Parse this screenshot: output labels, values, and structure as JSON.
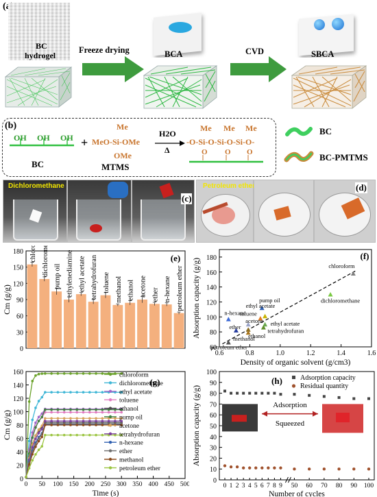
{
  "panel_a": {
    "label": "(a)",
    "bc_hydrogel": [
      "BC",
      "hydrogel"
    ],
    "step1": "Freeze drying",
    "bca": "BCA",
    "step2": "CVD",
    "sbca": "SBCA",
    "colors": {
      "bc_green": "#2fbf3f",
      "sbca_brown": "#c98a3a",
      "arrow": "#3e9b3e"
    }
  },
  "panel_b": {
    "label": "(b)",
    "bc_chain_oh": [
      "OH",
      "OH",
      "OH"
    ],
    "bc_name": "BC",
    "plus": "+",
    "mtms": {
      "top": "Me",
      "mid": "MeO-Si-OMe",
      "bottom": "OMe",
      "name": "MTMS"
    },
    "reaction": {
      "above": "H2O",
      "below": "Δ"
    },
    "product": {
      "me": [
        "Me",
        "Me",
        "Me"
      ],
      "chain": "-O-Si-O-Si-O-Si-O-",
      "o": [
        "O",
        "O",
        "O"
      ]
    },
    "legend": [
      {
        "label": "BC"
      },
      {
        "label": "BC-PMTMS"
      }
    ]
  },
  "panel_c": {
    "label": "(c)",
    "solvent": "Dichloromethane"
  },
  "panel_d": {
    "label": "(d)",
    "solvent": "Petroleum ether"
  },
  "chart_data": [
    {
      "panel": "(e)",
      "type": "bar",
      "ylabel": "Cm (g/g)",
      "ylim": [
        0,
        180
      ],
      "yticks": [
        0,
        30,
        60,
        90,
        120,
        150,
        180
      ],
      "categories": [
        "chloroform",
        "dichloromethane",
        "pump oil",
        "ethylenediamine",
        "ethyl acetate",
        "tetrahydrofuran",
        "toluene",
        "methanol",
        "ethanol",
        "acetone",
        "ether",
        "n-hexane",
        "petroleum ether"
      ],
      "values": [
        155,
        128,
        105,
        90,
        100,
        86,
        98,
        80,
        84,
        90,
        82,
        81,
        65
      ],
      "errors": [
        4,
        4,
        6,
        5,
        3,
        4,
        5,
        2,
        4,
        6,
        3,
        3,
        2
      ],
      "bar_color": "#f4b07e"
    },
    {
      "panel": "(f)",
      "type": "scatter",
      "xlabel": "Density of organic solvent (g/cm3)",
      "ylabel": "Absorption capacity (g/g)",
      "xlim": [
        0.6,
        1.6
      ],
      "ylim": [
        60,
        190
      ],
      "xticks": [
        0.6,
        0.8,
        1.0,
        1.2,
        1.4,
        1.6
      ],
      "yticks": [
        60,
        80,
        100,
        120,
        140,
        160,
        180
      ],
      "points": [
        {
          "name": "chloroform",
          "x": 1.48,
          "y": 158,
          "color": "#808080"
        },
        {
          "name": "dichloromethane",
          "x": 1.33,
          "y": 130,
          "color": "#7ac943"
        },
        {
          "name": "pump oil",
          "x": 0.88,
          "y": 112,
          "color": "#2f5fb0"
        },
        {
          "name": "ethyl acetate",
          "x": 0.9,
          "y": 101,
          "color": "#c8b400"
        },
        {
          "name": "toluene",
          "x": 0.87,
          "y": 98,
          "color": "#e07a1f"
        },
        {
          "name": "n-hexane",
          "x": 0.66,
          "y": 97,
          "color": "#3d6ad6"
        },
        {
          "name": "acetone",
          "x": 0.79,
          "y": 90,
          "color": "#9aa4c8"
        },
        {
          "name": "ether",
          "x": 0.71,
          "y": 82,
          "color": "#2a3fa0"
        },
        {
          "name": "ethyl acetate",
          "x": 0.9,
          "y": 90,
          "color": "#6aa84f"
        },
        {
          "name": "tetrahydrofuran",
          "x": 0.89,
          "y": 86,
          "color": "#5f8f2a"
        },
        {
          "name": "ethanol",
          "x": 0.79,
          "y": 83,
          "color": "#8c6d1f"
        },
        {
          "name": "methanol",
          "x": 0.79,
          "y": 79,
          "color": "#a8751d"
        },
        {
          "name": "petroleum ether",
          "x": 0.66,
          "y": 66,
          "color": "#555555"
        }
      ]
    },
    {
      "panel": "(g)",
      "type": "line",
      "xlabel": "Time (s)",
      "ylabel": "Cm (g/g)",
      "xlim": [
        0,
        500
      ],
      "ylim": [
        0,
        160
      ],
      "xticks": [
        0,
        50,
        100,
        150,
        200,
        250,
        300,
        350,
        400,
        450,
        500
      ],
      "yticks": [
        0,
        20,
        40,
        60,
        80,
        100,
        120,
        140,
        160
      ],
      "series": [
        {
          "name": "chloroform",
          "final": 157,
          "color": "#6aa12a"
        },
        {
          "name": "dichloromethane",
          "final": 129,
          "color": "#3fb6d6"
        },
        {
          "name": "ethyl acetate",
          "final": 104,
          "color": "#a066c8"
        },
        {
          "name": "toluene",
          "final": 99,
          "color": "#e07ac0"
        },
        {
          "name": "ethanol",
          "final": 84,
          "color": "#4c4c4c"
        },
        {
          "name": "pump oil",
          "final": 103,
          "color": "#3f7f3f"
        },
        {
          "name": "acetone",
          "final": 90,
          "color": "#d9a35a"
        },
        {
          "name": "tetrahydrofuran",
          "final": 86,
          "color": "#7b3f9e"
        },
        {
          "name": "n-hexane",
          "final": 81,
          "color": "#2f5fb0"
        },
        {
          "name": "ether",
          "final": 82,
          "color": "#6d6d6d"
        },
        {
          "name": "methanol",
          "final": 80,
          "color": "#8b4a1c"
        },
        {
          "name": "petroleum ether",
          "final": 65,
          "color": "#9ac43f"
        }
      ]
    },
    {
      "panel": "(h)",
      "type": "scatter",
      "xlabel": "Number of cycles",
      "ylabel": "Absorption capacity (g/g)",
      "ylim": [
        0,
        100
      ],
      "yticks": [
        0,
        10,
        20,
        30,
        40,
        50,
        60,
        70,
        80,
        90,
        100
      ],
      "xticks": [
        "0",
        "1",
        "2",
        "3",
        "4",
        "5",
        "6",
        "7",
        "8",
        "9",
        "50",
        "60",
        "70",
        "80",
        "90",
        "100"
      ],
      "series": [
        {
          "name": "Adsorption capacity",
          "color": "#444444",
          "marker": "square",
          "points": [
            [
              0,
              82
            ],
            [
              1,
              80
            ],
            [
              2,
              80
            ],
            [
              3,
              80
            ],
            [
              4,
              80
            ],
            [
              5,
              80
            ],
            [
              6,
              80
            ],
            [
              7,
              80
            ],
            [
              8,
              80
            ],
            [
              9,
              79
            ],
            [
              50,
              79
            ],
            [
              60,
              78
            ],
            [
              70,
              77
            ],
            [
              80,
              76
            ],
            [
              90,
              75
            ],
            [
              100,
              75
            ]
          ]
        },
        {
          "name": "Residual quantity",
          "color": "#a0522d",
          "marker": "circle",
          "points": [
            [
              0,
              13
            ],
            [
              1,
              12
            ],
            [
              2,
              12
            ],
            [
              3,
              11
            ],
            [
              4,
              11
            ],
            [
              5,
              11
            ],
            [
              6,
              11
            ],
            [
              7,
              11
            ],
            [
              8,
              11
            ],
            [
              9,
              11
            ],
            [
              50,
              10
            ],
            [
              60,
              10
            ],
            [
              70,
              10
            ],
            [
              80,
              10
            ],
            [
              90,
              10
            ],
            [
              100,
              10
            ]
          ]
        }
      ],
      "inset": {
        "adsorption": "Adsorption",
        "squeezed": "Squeezed"
      }
    }
  ]
}
